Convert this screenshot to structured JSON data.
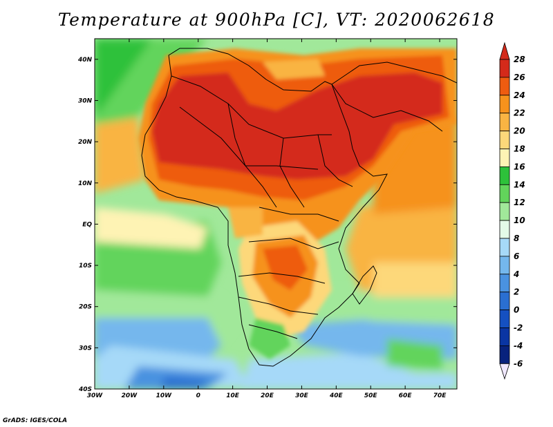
{
  "title": "Temperature at 900hPa [C], VT: 2020062618",
  "credit": "GrADS: IGES/COLA",
  "lat_labels": [
    "40N",
    "30N",
    "20N",
    "10N",
    "EQ",
    "10S",
    "20S",
    "30S",
    "40S"
  ],
  "lon_labels": [
    "30W",
    "20W",
    "10W",
    "0",
    "10E",
    "20E",
    "30E",
    "40E",
    "50E",
    "60E",
    "70E"
  ],
  "colorbar": {
    "labels": [
      "28",
      "26",
      "24",
      "22",
      "20",
      "18",
      "16",
      "14",
      "12",
      "10",
      "8",
      "6",
      "4",
      "2",
      "0",
      "-2",
      "-4",
      "-6"
    ],
    "colors": [
      "#d42a1a",
      "#ee5c10",
      "#f6921c",
      "#f9b443",
      "#fdd87a",
      "#fef3b4",
      "#2dc13a",
      "#62d45b",
      "#a1e89a",
      "#e3fbe8",
      "#a6d9f8",
      "#74b7ed",
      "#4a92e0",
      "#2a6fd1",
      "#1550c1",
      "#0a35a3",
      "#08227d",
      "#f0e8ff"
    ]
  },
  "domain": {
    "lon_min": -30,
    "lon_max": 75,
    "lat_min": -40,
    "lat_max": 45
  }
}
